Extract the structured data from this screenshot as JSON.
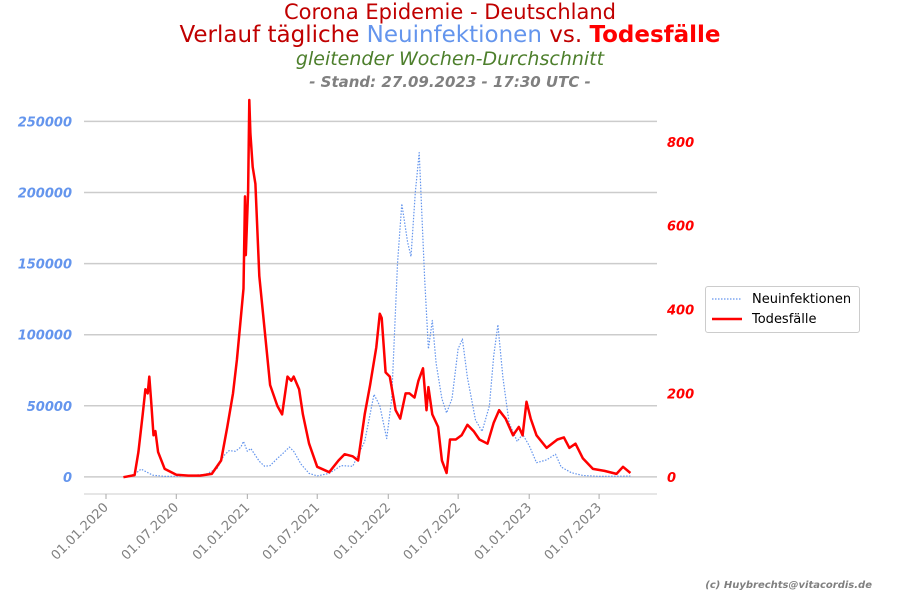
{
  "titles": {
    "line1": "Corona Epidemie - Deutschland",
    "line2_prefix": "Verlauf tägliche ",
    "line2_blue": "Neuinfektionen",
    "line2_mid": " vs. ",
    "line2_red": "Todesfälle",
    "line3": "gleitender Wochen-Durchschnitt",
    "line4": "- Stand: 27.09.2023 - 17:30 UTC -"
  },
  "credit": "(c) Huybrechts@vitacordis.de",
  "colors": {
    "infections": "#6495ed",
    "deaths": "#ff0000",
    "title": "#c00000",
    "subtitle": "#4d7f2c",
    "grey": "#808080"
  },
  "chart_data": {
    "type": "line",
    "x_ticks": [
      "01.01.2020",
      "01.07.2020",
      "01.01.2021",
      "01.07.2021",
      "01.01.2022",
      "01.07.2022",
      "01.01.2023",
      "01.07.2023"
    ],
    "y_left_ticks": [
      "0",
      "50000",
      "100000",
      "150000",
      "200000",
      "250000"
    ],
    "y_right_ticks": [
      "0",
      "200",
      "400",
      "600",
      "800"
    ],
    "ylim_left": [
      -12000,
      265000
    ],
    "ylim_right": [
      -40,
      900
    ],
    "grid": "horizontal",
    "legend_position": "center-right",
    "series": [
      {
        "name": "Neuinfektionen",
        "axis": "left",
        "style": "dotted",
        "points": [
          [
            "2020-03-01",
            200
          ],
          [
            "2020-03-20",
            3000
          ],
          [
            "2020-04-01",
            5500
          ],
          [
            "2020-04-15",
            3500
          ],
          [
            "2020-05-01",
            1200
          ],
          [
            "2020-06-01",
            400
          ],
          [
            "2020-07-01",
            450
          ],
          [
            "2020-08-15",
            1200
          ],
          [
            "2020-09-15",
            1800
          ],
          [
            "2020-10-15",
            6000
          ],
          [
            "2020-11-01",
            15000
          ],
          [
            "2020-11-15",
            18500
          ],
          [
            "2020-12-01",
            18000
          ],
          [
            "2020-12-15",
            21000
          ],
          [
            "2020-12-22",
            25000
          ],
          [
            "2021-01-01",
            18000
          ],
          [
            "2021-01-10",
            20000
          ],
          [
            "2021-02-01",
            11000
          ],
          [
            "2021-02-15",
            7500
          ],
          [
            "2021-03-01",
            8000
          ],
          [
            "2021-03-20",
            13000
          ],
          [
            "2021-04-01",
            16000
          ],
          [
            "2021-04-20",
            21000
          ],
          [
            "2021-05-01",
            18000
          ],
          [
            "2021-05-20",
            9000
          ],
          [
            "2021-06-10",
            2500
          ],
          [
            "2021-07-01",
            700
          ],
          [
            "2021-08-01",
            2500
          ],
          [
            "2021-09-01",
            8000
          ],
          [
            "2021-10-01",
            7500
          ],
          [
            "2021-11-01",
            25000
          ],
          [
            "2021-11-25",
            58000
          ],
          [
            "2021-12-10",
            50000
          ],
          [
            "2021-12-28",
            27000
          ],
          [
            "2022-01-10",
            55000
          ],
          [
            "2022-01-25",
            150000
          ],
          [
            "2022-02-05",
            192000
          ],
          [
            "2022-02-20",
            165000
          ],
          [
            "2022-03-01",
            155000
          ],
          [
            "2022-03-12",
            200000
          ],
          [
            "2022-03-22",
            228000
          ],
          [
            "2022-04-05",
            140000
          ],
          [
            "2022-04-15",
            90000
          ],
          [
            "2022-04-25",
            110000
          ],
          [
            "2022-05-05",
            80000
          ],
          [
            "2022-05-20",
            55000
          ],
          [
            "2022-06-01",
            45000
          ],
          [
            "2022-06-15",
            55000
          ],
          [
            "2022-07-01",
            90000
          ],
          [
            "2022-07-12",
            97000
          ],
          [
            "2022-07-25",
            70000
          ],
          [
            "2022-08-15",
            40000
          ],
          [
            "2022-09-01",
            32000
          ],
          [
            "2022-09-20",
            50000
          ],
          [
            "2022-10-01",
            85000
          ],
          [
            "2022-10-12",
            107000
          ],
          [
            "2022-10-25",
            70000
          ],
          [
            "2022-11-10",
            38000
          ],
          [
            "2022-12-01",
            25000
          ],
          [
            "2022-12-15",
            30000
          ],
          [
            "2023-01-01",
            22000
          ],
          [
            "2023-01-20",
            10000
          ],
          [
            "2023-02-15",
            12000
          ],
          [
            "2023-03-10",
            16000
          ],
          [
            "2023-03-25",
            7000
          ],
          [
            "2023-04-20",
            3000
          ],
          [
            "2023-05-20",
            1000
          ],
          [
            "2023-07-01",
            400
          ],
          [
            "2023-09-20",
            600
          ]
        ]
      },
      {
        "name": "Todesfälle",
        "axis": "right",
        "style": "solid",
        "points": [
          [
            "2020-02-15",
            0
          ],
          [
            "2020-03-15",
            5
          ],
          [
            "2020-03-25",
            60
          ],
          [
            "2020-04-05",
            150
          ],
          [
            "2020-04-12",
            210
          ],
          [
            "2020-04-18",
            200
          ],
          [
            "2020-04-22",
            240
          ],
          [
            "2020-04-27",
            180
          ],
          [
            "2020-05-03",
            100
          ],
          [
            "2020-05-08",
            110
          ],
          [
            "2020-05-15",
            60
          ],
          [
            "2020-06-01",
            20
          ],
          [
            "2020-07-01",
            6
          ],
          [
            "2020-08-01",
            4
          ],
          [
            "2020-09-01",
            4
          ],
          [
            "2020-10-01",
            8
          ],
          [
            "2020-10-25",
            40
          ],
          [
            "2020-11-10",
            120
          ],
          [
            "2020-11-25",
            200
          ],
          [
            "2020-12-05",
            280
          ],
          [
            "2020-12-15",
            380
          ],
          [
            "2020-12-22",
            450
          ],
          [
            "2020-12-26",
            670
          ],
          [
            "2020-12-28",
            530
          ],
          [
            "2021-01-03",
            680
          ],
          [
            "2021-01-06",
            900
          ],
          [
            "2021-01-09",
            820
          ],
          [
            "2021-01-15",
            740
          ],
          [
            "2021-01-22",
            700
          ],
          [
            "2021-02-01",
            480
          ],
          [
            "2021-02-15",
            350
          ],
          [
            "2021-03-01",
            220
          ],
          [
            "2021-03-20",
            170
          ],
          [
            "2021-04-01",
            150
          ],
          [
            "2021-04-15",
            240
          ],
          [
            "2021-04-25",
            230
          ],
          [
            "2021-05-01",
            240
          ],
          [
            "2021-05-15",
            210
          ],
          [
            "2021-05-25",
            150
          ],
          [
            "2021-06-10",
            80
          ],
          [
            "2021-07-01",
            25
          ],
          [
            "2021-08-01",
            12
          ],
          [
            "2021-08-25",
            40
          ],
          [
            "2021-09-10",
            55
          ],
          [
            "2021-10-01",
            50
          ],
          [
            "2021-10-15",
            40
          ],
          [
            "2021-11-01",
            150
          ],
          [
            "2021-11-15",
            220
          ],
          [
            "2021-12-01",
            310
          ],
          [
            "2021-12-10",
            390
          ],
          [
            "2021-12-15",
            380
          ],
          [
            "2021-12-25",
            250
          ],
          [
            "2022-01-05",
            240
          ],
          [
            "2022-01-20",
            160
          ],
          [
            "2022-02-01",
            140
          ],
          [
            "2022-02-15",
            200
          ],
          [
            "2022-02-25",
            200
          ],
          [
            "2022-03-10",
            190
          ],
          [
            "2022-03-20",
            230
          ],
          [
            "2022-04-01",
            260
          ],
          [
            "2022-04-10",
            160
          ],
          [
            "2022-04-15",
            215
          ],
          [
            "2022-04-25",
            150
          ],
          [
            "2022-05-10",
            120
          ],
          [
            "2022-05-20",
            40
          ],
          [
            "2022-06-01",
            10
          ],
          [
            "2022-06-10",
            90
          ],
          [
            "2022-06-25",
            90
          ],
          [
            "2022-07-10",
            100
          ],
          [
            "2022-07-25",
            125
          ],
          [
            "2022-08-10",
            110
          ],
          [
            "2022-08-25",
            90
          ],
          [
            "2022-09-15",
            80
          ],
          [
            "2022-10-01",
            130
          ],
          [
            "2022-10-15",
            160
          ],
          [
            "2022-11-01",
            140
          ],
          [
            "2022-11-20",
            100
          ],
          [
            "2022-12-05",
            120
          ],
          [
            "2022-12-15",
            100
          ],
          [
            "2022-12-25",
            180
          ],
          [
            "2023-01-05",
            140
          ],
          [
            "2023-01-20",
            100
          ],
          [
            "2023-02-15",
            70
          ],
          [
            "2023-03-15",
            90
          ],
          [
            "2023-04-01",
            95
          ],
          [
            "2023-04-15",
            70
          ],
          [
            "2023-05-01",
            80
          ],
          [
            "2023-05-20",
            45
          ],
          [
            "2023-06-15",
            20
          ],
          [
            "2023-07-15",
            15
          ],
          [
            "2023-08-15",
            8
          ],
          [
            "2023-09-01",
            25
          ],
          [
            "2023-09-20",
            10
          ]
        ]
      }
    ]
  }
}
